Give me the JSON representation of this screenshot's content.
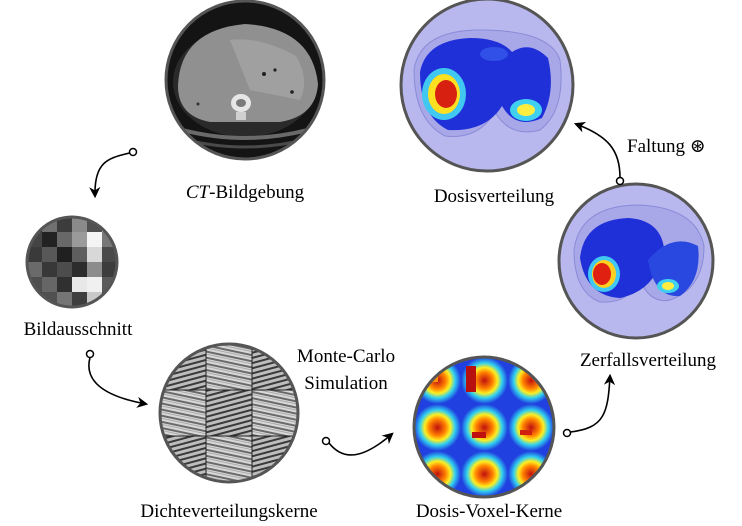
{
  "labels": {
    "ct_italic": "CT",
    "ct_rest": "-Bildgebung",
    "bildausschnitt": "Bildausschnitt",
    "dichte": "Dichteverteilungskerne",
    "mc_line1": "Monte-Carlo",
    "mc_line2": "Simulation",
    "dosis_voxel": "Dosis-Voxel-Kerne",
    "zerfall": "Zerfallsverteilung",
    "faltung": "Faltung ⊛",
    "dosisverteilung": "Dosisverteilung"
  },
  "colors": {
    "dose_background": "#b8b8ee",
    "dose_low": "#2030d8",
    "dose_mid": "#40c8f0",
    "dose_high": "#c81818",
    "circle_border": "#555555",
    "ct_background": "#1a1a1a"
  }
}
